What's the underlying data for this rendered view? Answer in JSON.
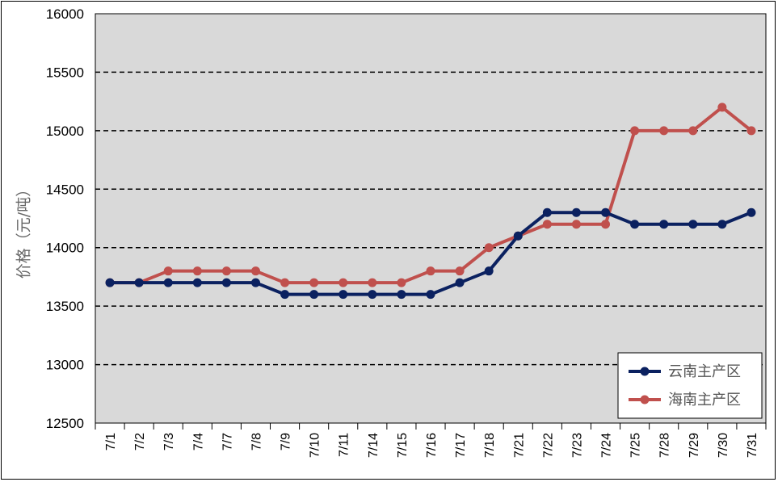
{
  "chart_data": {
    "type": "line",
    "ylabel": "价格（元/吨）",
    "ylim": [
      12500,
      16000
    ],
    "yticks": [
      12500,
      13000,
      13500,
      14000,
      14500,
      15000,
      15500,
      16000
    ],
    "categories": [
      "7/1",
      "7/2",
      "7/3",
      "7/4",
      "7/7",
      "7/8",
      "7/9",
      "7/10",
      "7/11",
      "7/14",
      "7/15",
      "7/16",
      "7/17",
      "7/18",
      "7/21",
      "7/22",
      "7/23",
      "7/24",
      "7/25",
      "7/28",
      "7/29",
      "7/30",
      "7/31"
    ],
    "series": [
      {
        "name": "云南主产区",
        "color": "#0b2160",
        "values": [
          13700,
          13700,
          13700,
          13700,
          13700,
          13700,
          13600,
          13600,
          13600,
          13600,
          13600,
          13600,
          13700,
          13800,
          14100,
          14300,
          14300,
          14300,
          14200,
          14200,
          14200,
          14200,
          14300
        ]
      },
      {
        "name": "海南主产区",
        "color": "#c0504d",
        "values": [
          13700,
          13700,
          13800,
          13800,
          13800,
          13800,
          13700,
          13700,
          13700,
          13700,
          13700,
          13800,
          13800,
          14000,
          14100,
          14200,
          14200,
          14200,
          15000,
          15000,
          15000,
          15200,
          15000
        ]
      }
    ],
    "grid": "horizontal-dashed",
    "legend_position": "bottom-right",
    "plot_background": "#d9d9d9"
  }
}
